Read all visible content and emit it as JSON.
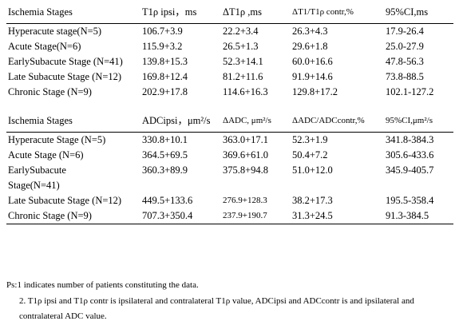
{
  "table1": {
    "headers": [
      "Ischemia Stages",
      "T1ρ ipsi，ms",
      "ΔT1ρ ,ms",
      "ΔT1/T1ρ contr,%",
      "95%CI,ms"
    ],
    "rows": [
      [
        "Hyperacute stage(N=5)",
        "106.7+3.9",
        "22.2+3.4",
        "26.3+4.3",
        "17.9-26.4"
      ],
      [
        "Acute Stage(N=6)",
        "115.9+3.2",
        "26.5+1.3",
        "29.6+1.8",
        "25.0-27.9"
      ],
      [
        "EarlySubacute Stage (N=41)",
        "139.8+15.3",
        "52.3+14.1",
        "60.0+16.6",
        "47.8-56.3"
      ],
      [
        "Late Subacute Stage (N=12)",
        "169.8+12.4",
        "81.2+11.6",
        "91.9+14.6",
        "73.8-88.5"
      ],
      [
        "Chronic Stage (N=9)",
        "202.9+17.8",
        "114.6+16.3",
        "129.8+17.2",
        "102.1-127.2"
      ]
    ]
  },
  "table2": {
    "headers": [
      "Ischemia Stages",
      "ADCipsi，μm²/s",
      "ΔADC, μm²/s",
      "ΔADC/ADCcontr,%",
      "95%CI,μm²/s"
    ],
    "rows": [
      [
        "Hyperacute Stage (N=5)",
        "330.8+10.1",
        "363.0+17.1",
        "52.3+1.9",
        "341.8-384.3"
      ],
      [
        "Acute Stage (N=6)",
        "364.5+69.5",
        "369.6+61.0",
        "50.4+7.2",
        "305.6-433.6"
      ],
      [
        "EarlySubacute Stage(N=41)",
        "360.3+89.9",
        "375.8+94.8",
        "51.0+12.0",
        "345.9-405.7"
      ],
      [
        "Late Subacute Stage (N=12)",
        "449.5+133.6",
        "276.9+128.3",
        "38.2+17.3",
        "195.5-358.4"
      ],
      [
        "Chronic Stage (N=9)",
        "707.3+350.4",
        "237.9+190.7",
        "31.3+24.5",
        "91.3-384.5"
      ]
    ]
  },
  "notes": {
    "note1": "Ps:1 indicates number of patients constituting the data.",
    "note2": "2. T1ρ ipsi and T1ρ contr is ipsilateral and contralateral T1ρ value, ADCipsi and ADCcontr is and ipsilateral and contralateral ADC value."
  }
}
